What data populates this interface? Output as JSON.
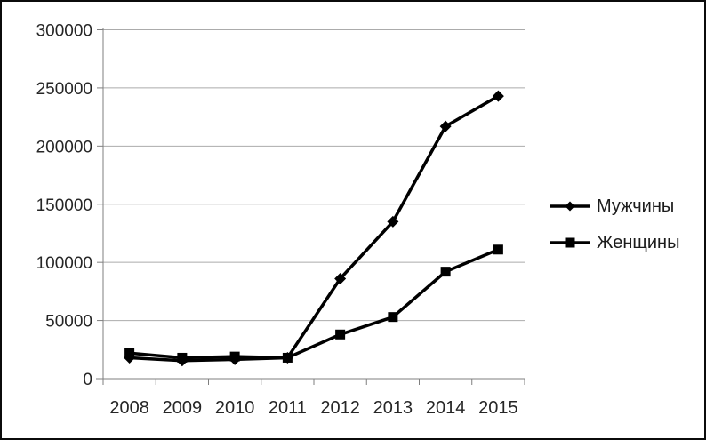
{
  "frame": {
    "background": "#ffffff",
    "border_color": "#0b0b0b"
  },
  "chart_data": {
    "type": "line",
    "title": "",
    "xlabel": "",
    "ylabel": "",
    "categories": [
      "2008",
      "2009",
      "2010",
      "2011",
      "2012",
      "2013",
      "2014",
      "2015"
    ],
    "series": [
      {
        "name": "Мужчины",
        "marker": "diamond",
        "color": "#000000",
        "values": [
          18000,
          15500,
          16500,
          18000,
          86000,
          135000,
          217000,
          243000
        ]
      },
      {
        "name": "Женщины",
        "marker": "square",
        "color": "#000000",
        "values": [
          22000,
          18000,
          19000,
          18000,
          38000,
          53000,
          92000,
          111000
        ]
      }
    ],
    "ylim": [
      0,
      300000
    ],
    "ytick_step": 50000,
    "ytick_labels": [
      "0",
      "50000",
      "100000",
      "150000",
      "200000",
      "250000",
      "300000"
    ],
    "grid": "horizontal-only",
    "legend_position": "right",
    "gridline_color": "#ababab",
    "axis_color": "#7f7f7f",
    "text_color": "#262626"
  }
}
